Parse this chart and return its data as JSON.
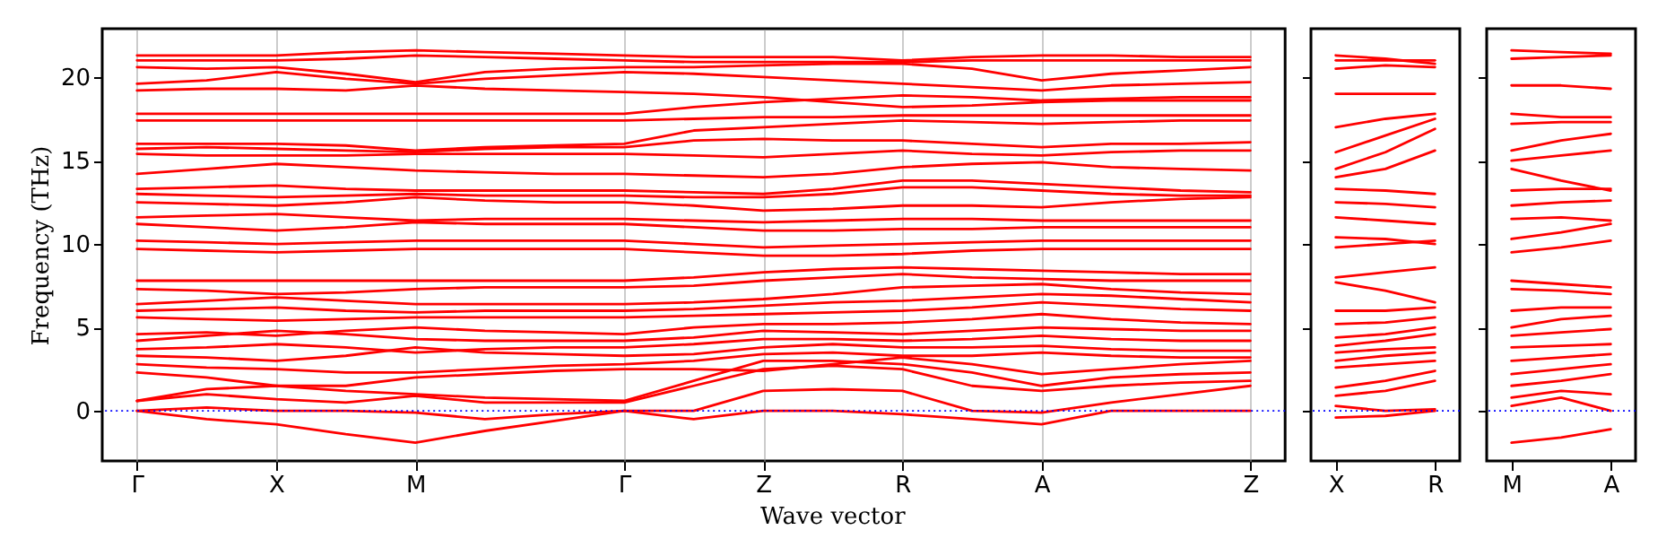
{
  "chart_data": [
    {
      "type": "line",
      "xlabel": "Wave vector",
      "ylabel": "Frequency (THz)",
      "ylim": [
        -3,
        22.9
      ],
      "yticks": [
        0,
        5,
        10,
        15,
        20
      ],
      "grid": "x",
      "categories": [
        "Γ",
        null,
        "X",
        null,
        "M",
        null,
        null,
        "Γ",
        null,
        "Z",
        null,
        "R",
        null,
        "A",
        null,
        null,
        "Z"
      ],
      "ref_lines": [
        {
          "axis": "y",
          "value": 0,
          "color": "#0000ff",
          "line_style": "dotted"
        }
      ],
      "series": [
        {
          "color": "#ff0000",
          "values": [
            0,
            -0.5,
            -0.8,
            -1.4,
            -1.9,
            -1.2,
            -0.6,
            0,
            -0.5,
            0,
            0,
            -0.2,
            -0.5,
            -0.8,
            0,
            0,
            0
          ]
        },
        {
          "color": "#ff0000",
          "values": [
            0,
            0.2,
            0,
            0,
            -0.1,
            -0.5,
            -0.2,
            0,
            0,
            1.2,
            1.3,
            1.2,
            0,
            -0.1,
            0.5,
            1,
            1.5
          ]
        },
        {
          "color": "#ff0000",
          "values": [
            0.6,
            1,
            0.7,
            0.5,
            0.9,
            0.5,
            0.5,
            0.5,
            1.5,
            2.5,
            2.7,
            2.5,
            1.5,
            1.2,
            1.5,
            1.7,
            1.8
          ]
        },
        {
          "color": "#ff0000",
          "values": [
            0.6,
            1.3,
            1.5,
            1.2,
            1,
            0.8,
            0.7,
            0.6,
            1.8,
            3,
            3,
            2.8,
            2.3,
            1.5,
            2,
            2.2,
            2.3
          ]
        },
        {
          "color": "#ff0000",
          "values": [
            2.3,
            2,
            1.5,
            1.5,
            2,
            2.2,
            2.4,
            2.5,
            2.5,
            2.4,
            2.8,
            3.2,
            2.8,
            2.2,
            2.5,
            2.8,
            3
          ]
        },
        {
          "color": "#ff0000",
          "values": [
            2.8,
            2.6,
            2.5,
            2.3,
            2.3,
            2.5,
            2.7,
            2.8,
            3,
            3.4,
            3.5,
            3.3,
            3.3,
            3.5,
            3.3,
            3.2,
            3.2
          ]
        },
        {
          "color": "#ff0000",
          "values": [
            3.3,
            3.2,
            3,
            3.3,
            3.8,
            3.5,
            3.4,
            3.3,
            3.4,
            3.8,
            4,
            3.8,
            3.8,
            3.9,
            3.7,
            3.6,
            3.6
          ]
        },
        {
          "color": "#ff0000",
          "values": [
            3.7,
            3.8,
            4,
            3.8,
            3.5,
            3.7,
            3.8,
            3.8,
            4,
            4.3,
            4.3,
            4.2,
            4.3,
            4.5,
            4.3,
            4.2,
            4.2
          ]
        },
        {
          "color": "#ff0000",
          "values": [
            4.2,
            4.5,
            4.8,
            4.6,
            4.3,
            4.2,
            4.2,
            4.2,
            4.4,
            4.8,
            4.7,
            4.6,
            4.8,
            5,
            4.9,
            4.8,
            4.8
          ]
        },
        {
          "color": "#ff0000",
          "values": [
            4.6,
            4.7,
            4.5,
            4.8,
            5,
            4.8,
            4.7,
            4.6,
            5,
            5.2,
            5.2,
            5.3,
            5.5,
            5.8,
            5.5,
            5.3,
            5.2
          ]
        },
        {
          "color": "#ff0000",
          "values": [
            5.6,
            5.5,
            5.4,
            5.5,
            5.6,
            5.6,
            5.6,
            5.6,
            5.7,
            5.8,
            5.9,
            6,
            6.2,
            6.5,
            6.3,
            6.1,
            6
          ]
        },
        {
          "color": "#ff0000",
          "values": [
            6,
            6.1,
            6.2,
            6,
            5.9,
            6,
            6,
            6,
            6.1,
            6.3,
            6.5,
            6.6,
            6.8,
            7,
            6.9,
            6.7,
            6.5
          ]
        },
        {
          "color": "#ff0000",
          "values": [
            6.4,
            6.6,
            6.8,
            6.6,
            6.4,
            6.4,
            6.4,
            6.4,
            6.5,
            6.7,
            7,
            7.4,
            7.5,
            7.6,
            7.3,
            7.1,
            7
          ]
        },
        {
          "color": "#ff0000",
          "values": [
            7.3,
            7.2,
            7,
            7.1,
            7.3,
            7.4,
            7.4,
            7.4,
            7.5,
            7.8,
            8,
            8.2,
            8,
            7.9,
            7.8,
            7.8,
            7.8
          ]
        },
        {
          "color": "#ff0000",
          "values": [
            7.8,
            7.8,
            7.8,
            7.8,
            7.8,
            7.8,
            7.8,
            7.8,
            8,
            8.3,
            8.5,
            8.6,
            8.5,
            8.4,
            8.3,
            8.2,
            8.2
          ]
        },
        {
          "color": "#ff0000",
          "values": [
            9.7,
            9.6,
            9.5,
            9.6,
            9.7,
            9.7,
            9.7,
            9.7,
            9.5,
            9.3,
            9.3,
            9.4,
            9.6,
            9.7,
            9.7,
            9.7,
            9.7
          ]
        },
        {
          "color": "#ff0000",
          "values": [
            10.2,
            10.1,
            10,
            10.1,
            10.2,
            10.2,
            10.2,
            10.2,
            10,
            9.8,
            9.9,
            10,
            10.1,
            10.2,
            10.2,
            10.2,
            10.2
          ]
        },
        {
          "color": "#ff0000",
          "values": [
            11.2,
            11,
            10.8,
            11,
            11.3,
            11.2,
            11.2,
            11.2,
            11,
            10.8,
            10.8,
            10.9,
            10.9,
            11,
            11,
            11,
            11
          ]
        },
        {
          "color": "#ff0000",
          "values": [
            11.6,
            11.7,
            11.8,
            11.6,
            11.4,
            11.5,
            11.5,
            11.5,
            11.4,
            11.3,
            11.4,
            11.5,
            11.5,
            11.4,
            11.4,
            11.4,
            11.4
          ]
        },
        {
          "color": "#ff0000",
          "values": [
            12.5,
            12.4,
            12.3,
            12.5,
            12.8,
            12.6,
            12.5,
            12.5,
            12.3,
            12,
            12.1,
            12.3,
            12.3,
            12.2,
            12.5,
            12.7,
            12.8
          ]
        },
        {
          "color": "#ff0000",
          "values": [
            13,
            12.9,
            12.8,
            12.9,
            13,
            12.9,
            12.9,
            12.9,
            12.8,
            12.8,
            13,
            13.4,
            13.4,
            13.2,
            13,
            12.9,
            12.9
          ]
        },
        {
          "color": "#ff0000",
          "values": [
            13.3,
            13.4,
            13.5,
            13.3,
            13.2,
            13.2,
            13.2,
            13.2,
            13.1,
            13,
            13.3,
            13.8,
            13.8,
            13.6,
            13.4,
            13.2,
            13.1
          ]
        },
        {
          "color": "#ff0000",
          "values": [
            14.2,
            14.5,
            14.8,
            14.6,
            14.4,
            14.3,
            14.2,
            14.2,
            14.1,
            14,
            14.2,
            14.6,
            14.8,
            14.9,
            14.6,
            14.5,
            14.4
          ]
        },
        {
          "color": "#ff0000",
          "values": [
            15.4,
            15.3,
            15.3,
            15.3,
            15.4,
            15.4,
            15.4,
            15.4,
            15.3,
            15.2,
            15.4,
            15.6,
            15.4,
            15.3,
            15.5,
            15.6,
            15.6
          ]
        },
        {
          "color": "#ff0000",
          "values": [
            15.7,
            15.8,
            15.7,
            15.6,
            15.5,
            15.7,
            15.8,
            15.8,
            16.2,
            16.3,
            16.2,
            16.2,
            16,
            15.8,
            16,
            16,
            16.1
          ]
        },
        {
          "color": "#ff0000",
          "values": [
            16,
            16,
            16,
            15.9,
            15.6,
            15.8,
            15.9,
            16,
            16.8,
            17,
            17.2,
            17.4,
            17.3,
            17.2,
            17.3,
            17.4,
            17.4
          ]
        },
        {
          "color": "#ff0000",
          "values": [
            17.4,
            17.4,
            17.4,
            17.4,
            17.4,
            17.4,
            17.4,
            17.4,
            17.5,
            17.6,
            17.6,
            17.7,
            17.7,
            17.7,
            17.7,
            17.7,
            17.7
          ]
        },
        {
          "color": "#ff0000",
          "values": [
            17.8,
            17.8,
            17.8,
            17.8,
            17.8,
            17.8,
            17.8,
            17.8,
            18.2,
            18.5,
            18.7,
            18.9,
            18.8,
            18.6,
            18.7,
            18.8,
            18.8
          ]
        },
        {
          "color": "#ff0000",
          "values": [
            19.2,
            19.3,
            19.3,
            19.2,
            19.5,
            19.3,
            19.2,
            19.1,
            19,
            18.8,
            18.5,
            18.2,
            18.3,
            18.5,
            18.6,
            18.6,
            18.6
          ]
        },
        {
          "color": "#ff0000",
          "values": [
            19.6,
            19.8,
            20.3,
            19.9,
            19.6,
            19.9,
            20.1,
            20.3,
            20.2,
            20,
            19.8,
            19.6,
            19.4,
            19.2,
            19.5,
            19.6,
            19.7
          ]
        },
        {
          "color": "#ff0000",
          "values": [
            20.6,
            20.5,
            20.6,
            20.2,
            19.7,
            20.3,
            20.5,
            20.6,
            20.6,
            20.7,
            20.8,
            20.8,
            20.5,
            19.8,
            20.2,
            20.4,
            20.6
          ]
        },
        {
          "color": "#ff0000",
          "values": [
            21,
            21,
            21,
            21.1,
            21.3,
            21.2,
            21.1,
            21,
            20.9,
            20.9,
            20.9,
            20.9,
            21,
            21,
            21,
            21,
            21
          ]
        },
        {
          "color": "#ff0000",
          "values": [
            21.3,
            21.3,
            21.3,
            21.5,
            21.6,
            21.5,
            21.4,
            21.3,
            21.2,
            21.2,
            21.2,
            21,
            21.2,
            21.3,
            21.3,
            21.2,
            21.2
          ]
        }
      ]
    },
    {
      "type": "line",
      "ylim": [
        -3,
        22.9
      ],
      "yticks": [
        0,
        5,
        10,
        15,
        20
      ],
      "tick_labels": "x",
      "categories": [
        "X",
        null,
        "R"
      ],
      "ref_lines": [
        {
          "axis": "y",
          "value": 0,
          "color": "#0000ff",
          "line_style": "dotted"
        }
      ],
      "series": [
        {
          "color": "#ff0000",
          "values": [
            -0.4,
            -0.3,
            0
          ]
        },
        {
          "color": "#ff0000",
          "values": [
            0.3,
            0,
            0.1
          ]
        },
        {
          "color": "#ff0000",
          "values": [
            0.9,
            1.2,
            1.8
          ]
        },
        {
          "color": "#ff0000",
          "values": [
            1.4,
            1.8,
            2.4
          ]
        },
        {
          "color": "#ff0000",
          "values": [
            2.6,
            2.8,
            3
          ]
        },
        {
          "color": "#ff0000",
          "values": [
            3,
            3.3,
            3.5
          ]
        },
        {
          "color": "#ff0000",
          "values": [
            3.5,
            3.7,
            3.8
          ]
        },
        {
          "color": "#ff0000",
          "values": [
            3.9,
            4.2,
            4.6
          ]
        },
        {
          "color": "#ff0000",
          "values": [
            4.4,
            4.6,
            5
          ]
        },
        {
          "color": "#ff0000",
          "values": [
            5.2,
            5.3,
            5.6
          ]
        },
        {
          "color": "#ff0000",
          "values": [
            6,
            6,
            6.2
          ]
        },
        {
          "color": "#ff0000",
          "values": [
            7.7,
            7.2,
            6.5
          ]
        },
        {
          "color": "#ff0000",
          "values": [
            8,
            8.3,
            8.6
          ]
        },
        {
          "color": "#ff0000",
          "values": [
            9.8,
            10,
            10.2
          ]
        },
        {
          "color": "#ff0000",
          "values": [
            10.4,
            10.3,
            10
          ]
        },
        {
          "color": "#ff0000",
          "values": [
            11.6,
            11.4,
            11.2
          ]
        },
        {
          "color": "#ff0000",
          "values": [
            12.5,
            12.4,
            12.2
          ]
        },
        {
          "color": "#ff0000",
          "values": [
            13.3,
            13.2,
            13
          ]
        },
        {
          "color": "#ff0000",
          "values": [
            14,
            14.5,
            15.6
          ]
        },
        {
          "color": "#ff0000",
          "values": [
            14.5,
            15.5,
            16.9
          ]
        },
        {
          "color": "#ff0000",
          "values": [
            15.5,
            16.5,
            17.5
          ]
        },
        {
          "color": "#ff0000",
          "values": [
            17,
            17.5,
            17.8
          ]
        },
        {
          "color": "#ff0000",
          "values": [
            19,
            19,
            19
          ]
        },
        {
          "color": "#ff0000",
          "values": [
            20.5,
            20.7,
            20.6
          ]
        },
        {
          "color": "#ff0000",
          "values": [
            21,
            21,
            21
          ]
        },
        {
          "color": "#ff0000",
          "values": [
            21.3,
            21.1,
            20.8
          ]
        }
      ]
    },
    {
      "type": "line",
      "ylim": [
        -3,
        22.9
      ],
      "yticks": [
        0,
        5,
        10,
        15,
        20
      ],
      "tick_labels": "x",
      "categories": [
        "M",
        null,
        "A"
      ],
      "ref_lines": [
        {
          "axis": "y",
          "value": 0,
          "color": "#0000ff",
          "line_style": "dotted"
        }
      ],
      "series": [
        {
          "color": "#ff0000",
          "values": [
            -1.9,
            -1.6,
            -1.1
          ]
        },
        {
          "color": "#ff0000",
          "values": [
            0.3,
            0.8,
            0
          ]
        },
        {
          "color": "#ff0000",
          "values": [
            0.8,
            1.2,
            1
          ]
        },
        {
          "color": "#ff0000",
          "values": [
            1.5,
            1.8,
            2.2
          ]
        },
        {
          "color": "#ff0000",
          "values": [
            2.2,
            2.5,
            2.8
          ]
        },
        {
          "color": "#ff0000",
          "values": [
            3,
            3.2,
            3.4
          ]
        },
        {
          "color": "#ff0000",
          "values": [
            3.8,
            3.9,
            4
          ]
        },
        {
          "color": "#ff0000",
          "values": [
            4.5,
            4.7,
            4.9
          ]
        },
        {
          "color": "#ff0000",
          "values": [
            5,
            5.5,
            5.7
          ]
        },
        {
          "color": "#ff0000",
          "values": [
            6,
            6.2,
            6.2
          ]
        },
        {
          "color": "#ff0000",
          "values": [
            7.3,
            7.2,
            7
          ]
        },
        {
          "color": "#ff0000",
          "values": [
            7.8,
            7.6,
            7.4
          ]
        },
        {
          "color": "#ff0000",
          "values": [
            9.5,
            9.8,
            10.2
          ]
        },
        {
          "color": "#ff0000",
          "values": [
            10.3,
            10.7,
            11.2
          ]
        },
        {
          "color": "#ff0000",
          "values": [
            11.5,
            11.6,
            11.4
          ]
        },
        {
          "color": "#ff0000",
          "values": [
            12.3,
            12.5,
            12.6
          ]
        },
        {
          "color": "#ff0000",
          "values": [
            13.2,
            13.3,
            13.3
          ]
        },
        {
          "color": "#ff0000",
          "values": [
            14.5,
            13.8,
            13.2
          ]
        },
        {
          "color": "#ff0000",
          "values": [
            15,
            15.3,
            15.6
          ]
        },
        {
          "color": "#ff0000",
          "values": [
            15.6,
            16.2,
            16.6
          ]
        },
        {
          "color": "#ff0000",
          "values": [
            17.2,
            17.3,
            17.3
          ]
        },
        {
          "color": "#ff0000",
          "values": [
            17.8,
            17.6,
            17.6
          ]
        },
        {
          "color": "#ff0000",
          "values": [
            19.5,
            19.5,
            19.3
          ]
        },
        {
          "color": "#ff0000",
          "values": [
            21.1,
            21.2,
            21.3
          ]
        },
        {
          "color": "#ff0000",
          "values": [
            21.6,
            21.5,
            21.4
          ]
        }
      ]
    }
  ]
}
